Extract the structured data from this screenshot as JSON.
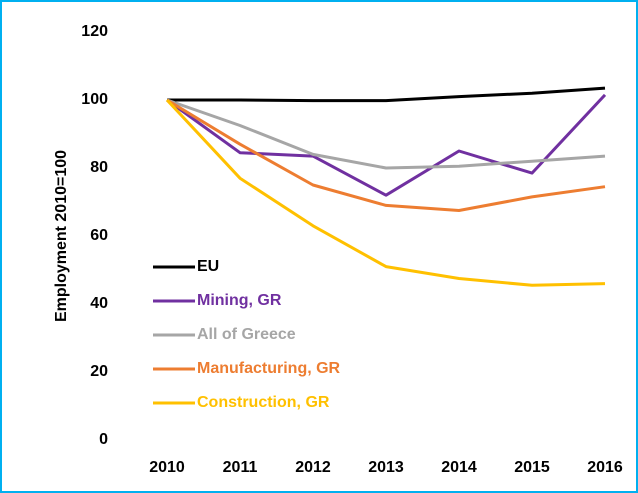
{
  "chart_data": {
    "type": "line",
    "y_label": "Employment 2010=100",
    "categories": [
      "2010",
      "2011",
      "2012",
      "2013",
      "2014",
      "2015",
      "2016"
    ],
    "series": [
      {
        "name": "EU",
        "color": "#000000",
        "values": [
          100,
          100,
          99.8,
          99.8,
          101,
          102,
          103.5
        ]
      },
      {
        "name": "Mining, GR",
        "color": "#7030a0",
        "values": [
          100,
          84.5,
          83.5,
          72,
          85,
          78.5,
          101.5
        ]
      },
      {
        "name": "All of Greece",
        "color": "#a6a6a6",
        "values": [
          100,
          92.5,
          84,
          80,
          80.5,
          82,
          83.5
        ]
      },
      {
        "name": "Manufacturing, GR",
        "color": "#ed7d31",
        "values": [
          100,
          87,
          75,
          69,
          67.5,
          71.5,
          74.5
        ]
      },
      {
        "name": "Construction, GR",
        "color": "#ffc000",
        "values": [
          100,
          77,
          63,
          51,
          47.5,
          45.5,
          46
        ]
      }
    ],
    "ylim": [
      0,
      120
    ],
    "yticks": [
      0,
      20,
      40,
      60,
      80,
      100,
      120
    ],
    "grid": false,
    "legend": "lower left"
  }
}
